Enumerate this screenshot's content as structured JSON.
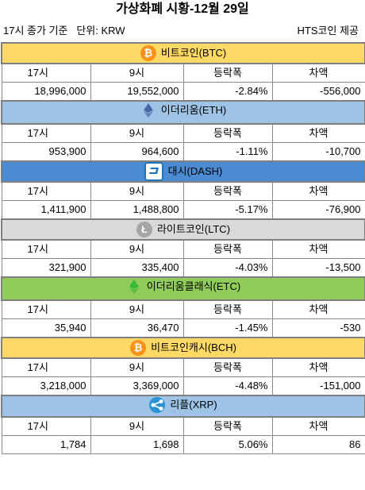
{
  "title": "가상화폐 시황-12월 29일",
  "meta_left": "17시 종가 기준   단위: KRW",
  "meta_right": "HTS코인 제공",
  "columns": [
    "17시",
    "9시",
    "등락폭",
    "차액"
  ],
  "coins": [
    {
      "name": "비트코인(BTC)",
      "icon": "bitcoin-icon",
      "color": "#ffd966",
      "icon_color": "#f7931a",
      "row": [
        "18,996,000",
        "19,552,000",
        "-2.84%",
        "-556,000"
      ]
    },
    {
      "name": "이더리움(ETH)",
      "icon": "ethereum-icon",
      "color": "#9dc3e6",
      "icon_color": "#4a64a8",
      "row": [
        "953,900",
        "964,600",
        "-1.11%",
        "-10,700"
      ]
    },
    {
      "name": "대시(DASH)",
      "icon": "dash-icon",
      "color": "#4a8bd3",
      "icon_color": "#1c75bc",
      "row": [
        "1,411,900",
        "1,488,800",
        "-5.17%",
        "-76,900"
      ]
    },
    {
      "name": "라이트코인(LTC)",
      "icon": "litecoin-icon",
      "color": "#d9d9d9",
      "icon_color": "#a6a6a6",
      "row": [
        "321,900",
        "335,400",
        "-4.03%",
        "-13,500"
      ]
    },
    {
      "name": "이더리움클래식(ETC)",
      "icon": "ethereum-classic-icon",
      "color": "#8fcc5a",
      "icon_color": "#3ab83a",
      "row": [
        "35,940",
        "36,470",
        "-1.45%",
        "-530"
      ]
    },
    {
      "name": "비트코인캐시(BCH)",
      "icon": "bitcoin-cash-icon",
      "color": "#ffd966",
      "icon_color": "#f7931a",
      "row": [
        "3,218,000",
        "3,369,000",
        "-4.48%",
        "-151,000"
      ]
    },
    {
      "name": "리플(XRP)",
      "icon": "ripple-icon",
      "color": "#9dc3e6",
      "icon_color": "#2a93d5",
      "row": [
        "1,784",
        "1,698",
        "5.06%",
        "86"
      ]
    }
  ]
}
